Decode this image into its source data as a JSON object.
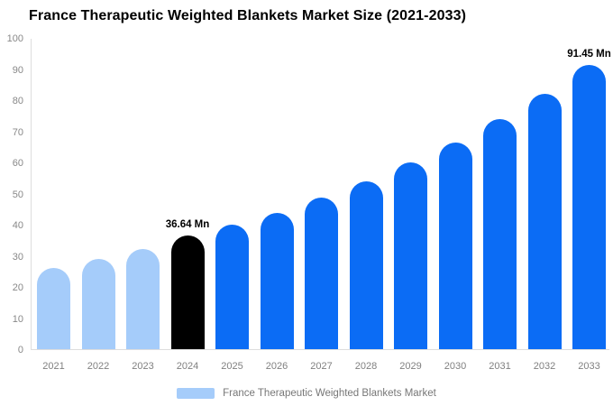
{
  "title": "France Therapeutic Weighted Blankets Market Size (2021-2033)",
  "colors": {
    "bar_light_blue": "#a5ccfa",
    "bar_blue": "#0b6cf5",
    "bar_highlight_black": "#000000",
    "axis_line": "#dddddd",
    "tick_text": "#888888",
    "legend_text": "#777777",
    "background": "#ffffff"
  },
  "chart_data": {
    "type": "bar",
    "title": "France Therapeutic Weighted Blankets Market Size (2021-2033)",
    "categories": [
      "2021",
      "2022",
      "2023",
      "2024",
      "2025",
      "2026",
      "2027",
      "2028",
      "2029",
      "2030",
      "2031",
      "2032",
      "2033"
    ],
    "values": [
      26.1,
      29.2,
      32.4,
      36.64,
      40.1,
      43.8,
      48.7,
      54.2,
      60.2,
      66.7,
      74.2,
      82.3,
      91.45
    ],
    "bar_colors": [
      "#a5ccfa",
      "#a5ccfa",
      "#a5ccfa",
      "#000000",
      "#0b6cf5",
      "#0b6cf5",
      "#0b6cf5",
      "#0b6cf5",
      "#0b6cf5",
      "#0b6cf5",
      "#0b6cf5",
      "#0b6cf5",
      "#0b6cf5"
    ],
    "data_labels": {
      "2024": "36.64 Mn",
      "2033": "91.45 Mn"
    },
    "xlabel": "",
    "ylabel": "",
    "ylim": [
      0,
      100
    ],
    "yticks": [
      0,
      10,
      20,
      30,
      40,
      50,
      60,
      70,
      80,
      90,
      100
    ],
    "grid": false,
    "legend": {
      "position": "bottom",
      "entries": [
        {
          "label": "France Therapeutic Weighted Blankets Market",
          "swatch_color": "#a5ccfa"
        }
      ]
    }
  }
}
